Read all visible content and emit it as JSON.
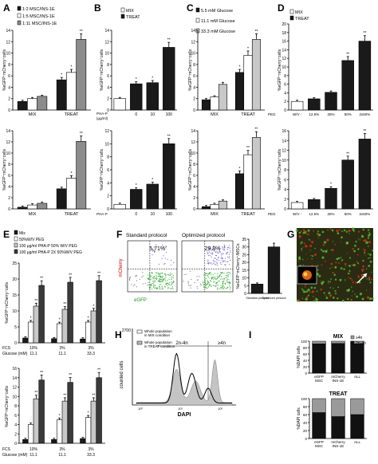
{
  "panels": {
    "A": {
      "letter": "A",
      "legend": [
        "1:2 MSC/INS-1E",
        "1:5 MSC/INS-1E",
        "1:11 MSC/INS-1E"
      ],
      "ylabel_top": "%eGFP⁺mCherry⁺cells",
      "ylabel_bot": "%eGFP⁺mCherry⁺cells",
      "groups": [
        "MIX",
        "TREAT"
      ],
      "top_ticks": [
        "0",
        "2",
        "4",
        "6",
        "8",
        "10",
        "12",
        "14"
      ],
      "bot_ticks": [
        "0",
        "2",
        "4",
        "6",
        "8",
        "10",
        "12",
        "14"
      ]
    },
    "B": {
      "letter": "B",
      "legend": [
        "MIX",
        "TREAT"
      ],
      "xprefix": "PHA-P",
      "xunit": "(μg/ml)",
      "xcats": [
        "0",
        "10",
        "100"
      ],
      "top_ticks": [
        "0",
        "2",
        "4",
        "6",
        "8",
        "10",
        "12",
        "14"
      ],
      "bot_ticks": [
        "0",
        "2",
        "4",
        "6",
        "8",
        "10",
        "12"
      ]
    },
    "C": {
      "letter": "C",
      "legend": [
        "5.5 mM Glucose",
        "11.1 mM Glucose",
        "33.3 mM Glucose"
      ],
      "groups": [
        "MIX",
        "TREAT"
      ],
      "top_ticks": [
        "0",
        "2",
        "4",
        "6",
        "8",
        "10",
        "12",
        "14"
      ],
      "bot_ticks": [
        "0",
        "2",
        "4",
        "6",
        "8",
        "10",
        "12",
        "14"
      ]
    },
    "D": {
      "letter": "D",
      "legend": [
        "MIX",
        "TREAT"
      ],
      "xprefix": "PEG",
      "xcats": [
        "W/V -",
        "12.5%",
        "25%",
        "50%",
        "2x50%"
      ],
      "top_ticks": [
        "0",
        "2",
        "4",
        "6",
        "8",
        "10",
        "12",
        "14",
        "16",
        "18",
        "20"
      ],
      "bot_ticks": [
        "0",
        "2",
        "4",
        "6",
        "8",
        "10",
        "12",
        "14",
        "16"
      ]
    },
    "E": {
      "letter": "E",
      "legend": [
        "Mix",
        "50%W/V PEG",
        "100 μg/ml PHA-P 50% W/V PEG",
        "100 μg/ml PHA-P 2X 50%W/V PEG"
      ],
      "ylabel": "%eGFP⁺mCherry⁺cells",
      "fcs_label": "FCS",
      "glucose_label": "Glucose (mM)",
      "fcs": [
        "10%",
        "3%",
        "3%"
      ],
      "glucose": [
        "11.1",
        "11.1",
        "33.3"
      ],
      "top_ticks": [
        "0",
        "5",
        "10",
        "15",
        "20",
        "25"
      ],
      "bot_ticks": [
        "0",
        "2",
        "4",
        "6",
        "8",
        "10",
        "12",
        "14",
        "16"
      ]
    },
    "F": {
      "letter": "F",
      "standard": "Standard protocol",
      "optimized": "Optimized protocol",
      "pct_standard": "5.71%",
      "pct_optimized": "29.8%",
      "xaxis": "eGFP",
      "yaxis": "mCherry",
      "bar_ylabel": "%eGFP⁺mCherry⁺/MSCs",
      "bar_cats": [
        "Standard protocol",
        "Optimized protocol"
      ],
      "bar_ticks": [
        "0",
        "5",
        "10",
        "15",
        "20",
        "25",
        "30",
        "35"
      ]
    },
    "G": {
      "letter": "G"
    },
    "H": {
      "letter": "H",
      "legend": [
        "Whole population in MIX condition",
        "Whole population in TREAT condition"
      ],
      "label_2n4n": "2n-4n",
      "label_gt4n": "≥4n",
      "ylabel": "counted cells",
      "xlabel": "DAPI",
      "ymax": "2700"
    },
    "I": {
      "letter": "I",
      "mix_title": "MIX",
      "treat_title": "TREAT",
      "legend": [
        "≥4n",
        "2n-4n"
      ],
      "ylabel": "%DAPI cells",
      "cats": [
        "eGFP MSC",
        "mCherry INS-1E",
        "ALL"
      ],
      "ticks": [
        "0",
        "20",
        "40",
        "60",
        "80",
        "100"
      ]
    }
  },
  "chart_data": [
    {
      "panel": "A-top",
      "type": "bar",
      "categories": [
        "MIX",
        "TREAT"
      ],
      "series": [
        {
          "name": "1:2 MSC/INS-1E",
          "values": [
            1.5,
            5.3
          ]
        },
        {
          "name": "1:5 MSC/INS-1E",
          "values": [
            2.0,
            6.6
          ]
        },
        {
          "name": "1:11 MSC/INS-1E",
          "values": [
            2.4,
            12.4
          ]
        }
      ],
      "ylim": [
        0,
        14
      ],
      "ylabel": "%eGFP⁺mCherry⁺cells"
    },
    {
      "panel": "A-bottom",
      "type": "bar",
      "categories": [
        "MIX",
        "TREAT"
      ],
      "series": [
        {
          "name": "1:2 MSC/INS-1E",
          "values": [
            0.3,
            3.6
          ]
        },
        {
          "name": "1:5 MSC/INS-1E",
          "values": [
            0.7,
            5.5
          ]
        },
        {
          "name": "1:11 MSC/INS-1E",
          "values": [
            1.0,
            12.1
          ]
        }
      ],
      "ylim": [
        0,
        14
      ],
      "ylabel": "%eGFP⁺mCherry⁺cells"
    },
    {
      "panel": "B-top",
      "type": "bar",
      "categories": [
        "-",
        "0",
        "10",
        "100"
      ],
      "series": [
        {
          "name": "MIX",
          "values": [
            2.0,
            null,
            null,
            null
          ]
        },
        {
          "name": "TREAT",
          "values": [
            null,
            4.6,
            4.8,
            11.0
          ]
        }
      ],
      "ylim": [
        0,
        14
      ]
    },
    {
      "panel": "B-bottom",
      "type": "bar",
      "categories": [
        "-",
        "0",
        "10",
        "100"
      ],
      "series": [
        {
          "name": "MIX",
          "values": [
            0.7,
            null,
            null,
            null
          ]
        },
        {
          "name": "TREAT",
          "values": [
            null,
            3.0,
            3.8,
            10.0
          ]
        }
      ],
      "ylim": [
        0,
        12
      ]
    },
    {
      "panel": "C-top",
      "type": "bar",
      "categories": [
        "MIX",
        "TREAT"
      ],
      "series": [
        {
          "name": "5.5 mM Glucose",
          "values": [
            1.8,
            6.6
          ]
        },
        {
          "name": "11.1 mM Glucose",
          "values": [
            2.3,
            9.6
          ]
        },
        {
          "name": "33.3 mM Glucose",
          "values": [
            4.5,
            12.4
          ]
        }
      ],
      "ylim": [
        0,
        14
      ]
    },
    {
      "panel": "C-bottom",
      "type": "bar",
      "categories": [
        "MIX",
        "TREAT"
      ],
      "series": [
        {
          "name": "5.5 mM Glucose",
          "values": [
            0.4,
            6.3
          ]
        },
        {
          "name": "11.1 mM Glucose",
          "values": [
            0.8,
            9.7
          ]
        },
        {
          "name": "33.3 mM Glucose",
          "values": [
            1.4,
            12.8
          ]
        }
      ],
      "ylim": [
        0,
        14
      ]
    },
    {
      "panel": "D-top",
      "type": "bar",
      "categories": [
        "-",
        "12.5%",
        "25%",
        "50%",
        "2x50%"
      ],
      "series": [
        {
          "name": "MIX",
          "values": [
            2.0,
            null,
            null,
            null,
            null
          ]
        },
        {
          "name": "TREAT",
          "values": [
            null,
            2.6,
            4.1,
            11.5,
            16.0
          ]
        }
      ],
      "ylim": [
        0,
        20
      ]
    },
    {
      "panel": "D-bottom",
      "type": "bar",
      "categories": [
        "-",
        "12.5%",
        "25%",
        "50%",
        "2x50%"
      ],
      "series": [
        {
          "name": "MIX",
          "values": [
            1.3,
            null,
            null,
            null,
            null
          ]
        },
        {
          "name": "TREAT",
          "values": [
            null,
            1.9,
            4.2,
            10.0,
            14.3
          ]
        }
      ],
      "ylim": [
        0,
        16
      ]
    },
    {
      "panel": "E-top",
      "type": "bar",
      "categories": [
        "10% / 11.1",
        "3% / 11.1",
        "3% / 33.3"
      ],
      "series": [
        {
          "name": "Mix",
          "values": [
            1.5,
            1.3,
            1.2
          ]
        },
        {
          "name": "50%W/V PEG",
          "values": [
            6.5,
            6.0,
            6.5
          ]
        },
        {
          "name": "100 μg/ml PHA-P 50% W/V PEG",
          "values": [
            11.5,
            10.5,
            10.0
          ]
        },
        {
          "name": "100 μg/ml PHA-P 2X 50%W/V PEG",
          "values": [
            18.0,
            19.0,
            19.5
          ]
        }
      ],
      "ylim": [
        0,
        25
      ]
    },
    {
      "panel": "E-bottom",
      "type": "bar",
      "categories": [
        "10% / 11.1",
        "3% / 11.1",
        "3% / 33.3"
      ],
      "series": [
        {
          "name": "Mix",
          "values": [
            0.8,
            0.8,
            1.0
          ]
        },
        {
          "name": "50%W/V PEG",
          "values": [
            4.0,
            5.0,
            5.5
          ]
        },
        {
          "name": "100 μg/ml PHA-P 50% W/V PEG",
          "values": [
            9.5,
            9.0,
            9.0
          ]
        },
        {
          "name": "100 μg/ml PHA-P 2X 50%W/V PEG",
          "values": [
            13.5,
            13.0,
            14.0
          ]
        }
      ],
      "ylim": [
        0,
        16
      ]
    },
    {
      "panel": "F-bar",
      "type": "bar",
      "categories": [
        "Standard protocol",
        "Optimized protocol"
      ],
      "values": [
        6.0,
        30.0
      ],
      "ylim": [
        0,
        35
      ]
    },
    {
      "panel": "I-MIX",
      "type": "bar",
      "categories": [
        "eGFP MSC",
        "mCherry INS-1E",
        "ALL"
      ],
      "series": [
        {
          "name": "2n-4n",
          "values": [
            92,
            93,
            92
          ]
        },
        {
          "name": "≥4n",
          "values": [
            8,
            7,
            8
          ]
        }
      ],
      "ylim": [
        0,
        100
      ]
    },
    {
      "panel": "I-TREAT",
      "type": "bar",
      "categories": [
        "eGFP MSC",
        "mCherry INS-1E",
        "ALL"
      ],
      "series": [
        {
          "name": "2n-4n",
          "values": [
            65,
            55,
            60
          ]
        },
        {
          "name": "≥4n",
          "values": [
            35,
            45,
            40
          ]
        }
      ],
      "ylim": [
        0,
        100
      ]
    }
  ]
}
